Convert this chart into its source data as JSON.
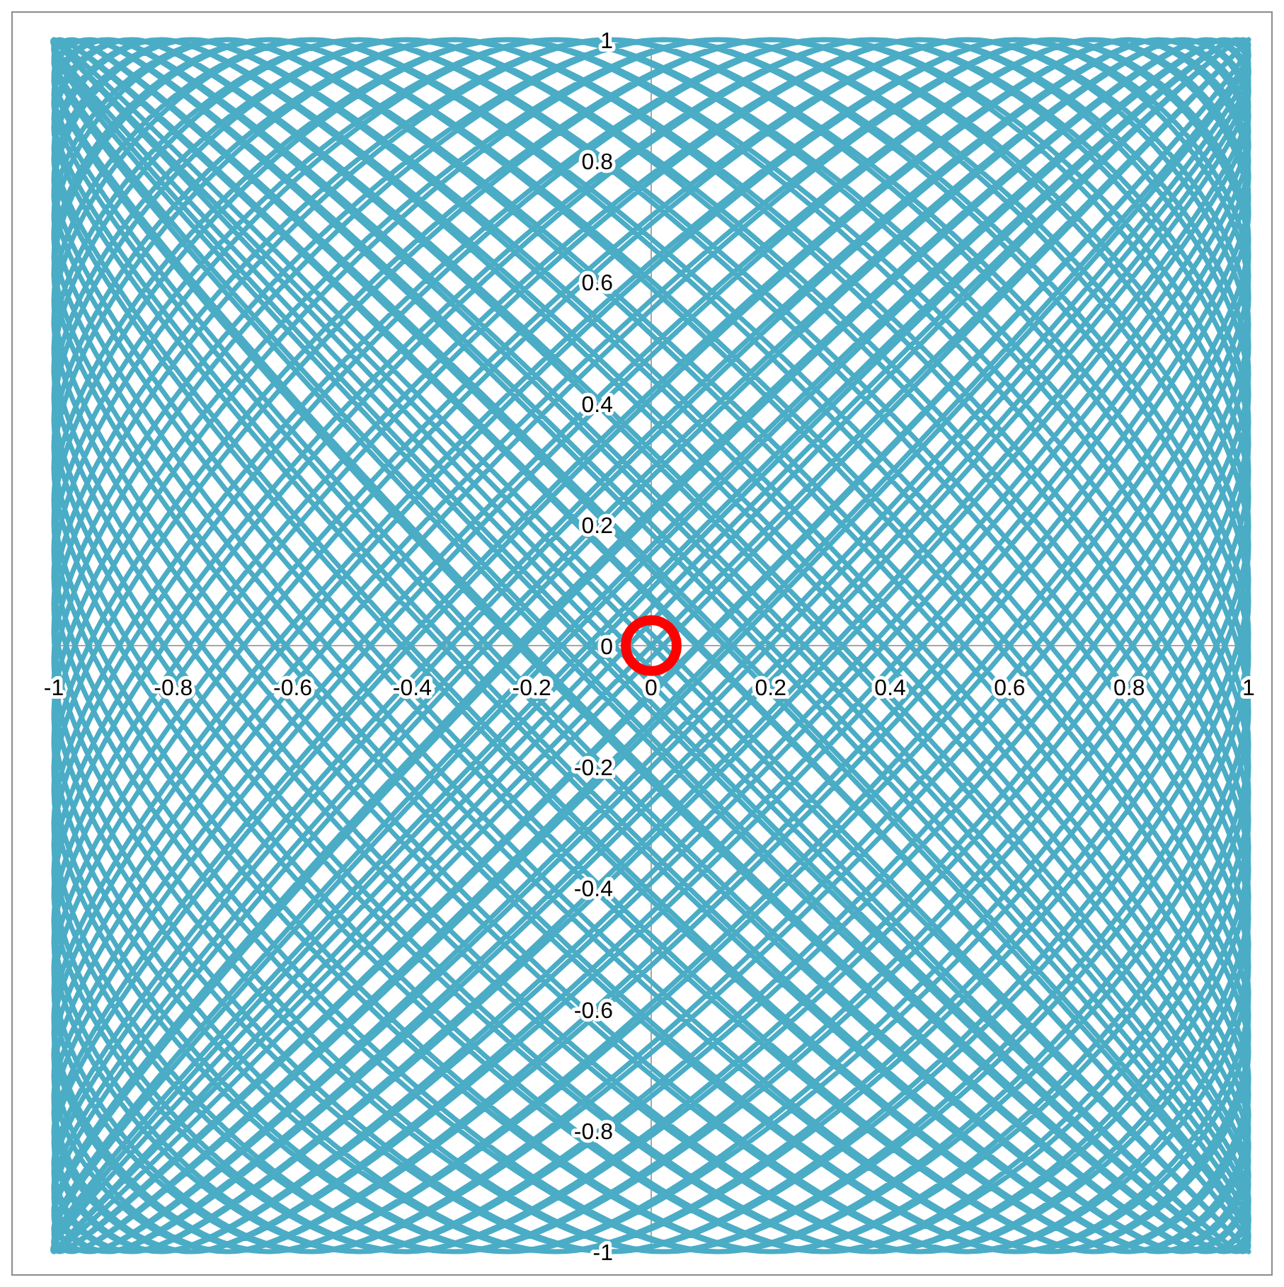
{
  "chart_data": {
    "type": "line",
    "xlim": [
      -1,
      1
    ],
    "ylim": [
      -1,
      1
    ],
    "xticks": [
      -1,
      -0.8,
      -0.6,
      -0.4,
      -0.2,
      0,
      0.2,
      0.4,
      0.6,
      0.8,
      1
    ],
    "yticks": [
      -1,
      -0.8,
      -0.6,
      -0.4,
      -0.2,
      0,
      0.2,
      0.4,
      0.6,
      0.8,
      1
    ],
    "series": [
      {
        "color": "#4bacc6",
        "x": [
          1,
          1,
          -1,
          -1,
          0.99,
          1,
          -0.99,
          -1,
          0.98,
          1,
          -0.97,
          -1,
          0.96,
          1,
          -0.94,
          -1,
          0.93,
          1,
          -0.91,
          -1,
          0.89,
          1,
          -0.87,
          -1,
          0.85,
          1,
          -0.82,
          -1,
          0.8,
          1,
          -0.77,
          -1,
          0.74,
          1,
          -0.71,
          -1,
          0.67,
          1,
          -0.64,
          -1,
          0.61,
          1,
          -0.57,
          -1,
          0.53,
          1,
          -0.49,
          -1,
          0.45,
          1,
          -0.41,
          -1,
          0.37,
          1,
          -0.33,
          -1,
          0.29,
          1,
          -0.24,
          -1,
          0.2,
          1,
          -0.16,
          -1,
          0.11,
          1,
          -0.07,
          -1,
          0.02,
          1,
          0.02,
          -1,
          -0.07,
          1,
          0.11,
          -1,
          -0.16,
          1,
          0.2,
          -1,
          -0.24,
          1,
          0.29,
          -1,
          -0.33,
          1,
          0.37,
          -1,
          -0.41,
          1,
          0.45,
          -1,
          -0.49,
          1,
          0.53,
          -1,
          -0.57,
          1,
          0.61,
          -1,
          -0.64,
          1,
          0.67,
          -1,
          -0.71,
          1,
          0.74,
          -1,
          -0.77,
          1,
          0.8,
          -1,
          -0.82,
          1,
          0.85,
          -1,
          -0.87,
          1,
          0.89,
          -1,
          -0.91,
          1,
          0.93,
          -1,
          -0.94,
          1,
          0.96,
          -1,
          -0.97,
          1,
          0.98,
          -1,
          -0.99,
          1,
          0.99,
          -1,
          -1,
          1,
          1,
          -1,
          -1,
          1,
          1,
          -1,
          -1,
          0.99,
          1,
          -0.99,
          -1,
          0.98,
          1,
          -0.97,
          -1,
          0.96,
          1,
          -0.94,
          -1,
          0.93,
          1,
          -0.91,
          -1,
          0.89,
          1,
          -0.87,
          -1,
          0.85,
          1,
          -0.82,
          -1,
          0.8,
          1,
          -0.77,
          -1,
          0.74,
          1,
          -0.71,
          -1,
          0.67,
          1,
          -0.64,
          -1,
          0.61,
          1,
          -0.57,
          -1,
          0.53,
          1,
          -0.49,
          -1,
          0.45,
          1,
          -0.41,
          -1,
          0.37,
          1,
          -0.33,
          -1,
          0.29,
          1,
          -0.24,
          -1,
          0.2,
          1,
          -0.16,
          -1,
          0.11,
          1,
          -0.07,
          -1,
          0.02,
          1,
          0.02,
          -1,
          -0.07,
          1,
          0.11,
          -1,
          -0.16,
          1,
          0.2,
          -1,
          -0.24,
          1,
          0.29,
          -1,
          -0.33,
          1,
          0.37,
          -1,
          -0.41,
          1,
          0.45,
          -1,
          -0.49,
          1,
          0.53,
          -1,
          -0.57,
          1,
          0.61,
          -1,
          -0.64,
          1,
          0.67,
          -1,
          -0.71,
          1,
          0.74,
          -1,
          -0.77,
          1,
          0.8,
          -1,
          -0.82,
          1,
          0.85,
          -1,
          -0.87,
          1,
          0.89,
          -1,
          -0.91,
          1,
          0.93,
          -1,
          -0.94,
          1,
          0.96,
          -1,
          -0.97,
          1,
          0.98,
          -1,
          -0.99,
          1,
          0.99,
          -1,
          -1,
          1,
          1,
          -1,
          -1
        ],
        "values": [
          1,
          1,
          -1,
          -1,
          1,
          0.99,
          -1,
          -0.99,
          1,
          0.98,
          -1,
          -0.97,
          1,
          0.96,
          -1,
          -0.94,
          1,
          0.93,
          -1,
          -0.91,
          1,
          0.89,
          -1,
          -0.87,
          1,
          0.85,
          -1,
          -0.82,
          1,
          0.8,
          -1,
          -0.77,
          1,
          0.74,
          -1,
          -0.71,
          1,
          0.67,
          -1,
          -0.64,
          1,
          0.61,
          -1,
          -0.57,
          1,
          0.53,
          -1,
          -0.49,
          1,
          0.45,
          -1,
          -0.41,
          1,
          0.37,
          -1,
          -0.33,
          1,
          0.29,
          -1,
          -0.24,
          1,
          0.2,
          -1,
          -0.16,
          1,
          0.11,
          -1,
          -0.07,
          1,
          0.02,
          -1,
          0.02,
          1,
          -0.07,
          -1,
          0.11,
          1,
          -0.16,
          -1,
          0.2,
          1,
          -0.24,
          -1,
          0.29,
          1,
          -0.33,
          -1,
          0.37,
          1,
          -0.41,
          -1,
          0.45,
          1,
          -0.49,
          -1,
          0.53,
          1,
          -0.57,
          -1,
          0.61,
          1,
          -0.64,
          -1,
          0.67,
          1,
          -0.71,
          -1,
          0.74,
          1,
          -0.77,
          -1,
          0.8,
          1,
          -0.82,
          -1,
          0.85,
          1,
          -0.87,
          -1,
          0.89,
          1,
          -0.91,
          -1,
          0.93,
          1,
          -0.94,
          -1,
          0.96,
          1,
          -0.97,
          -1,
          0.98,
          1,
          -0.99,
          -1,
          0.99,
          1,
          -1,
          -1,
          1,
          1,
          -1,
          -1,
          1,
          1,
          -1,
          -0.99,
          1,
          0.99,
          -1,
          -0.98,
          1,
          0.97,
          -1,
          -0.96,
          1,
          0.94,
          -1,
          -0.93,
          1,
          0.91,
          -1,
          -0.89,
          1,
          0.87,
          -1,
          -0.85,
          1,
          0.82,
          -1,
          -0.8,
          1,
          0.77,
          -1,
          -0.74,
          1,
          0.71,
          -1,
          -0.67,
          1,
          0.64,
          -1,
          -0.61,
          1,
          0.57,
          -1,
          -0.53,
          1,
          0.49,
          -1,
          -0.45,
          1,
          0.41,
          -1,
          -0.37,
          1,
          0.33,
          -1,
          -0.29,
          1,
          0.24,
          -1,
          -0.2,
          1,
          0.16,
          -1,
          -0.11,
          1,
          0.07,
          -1,
          -0.02,
          1,
          -0.02,
          -1,
          0.07,
          1,
          -0.11,
          -1,
          0.16,
          1,
          -0.2,
          -1,
          0.24,
          1,
          -0.29,
          -1,
          0.33,
          1,
          -0.37,
          -1,
          0.41,
          1,
          -0.45,
          -1,
          0.49,
          1,
          -0.53,
          -1,
          0.57,
          1,
          -0.61,
          -1,
          0.64,
          1,
          -0.67,
          -1,
          0.71,
          1,
          -0.74,
          -1,
          0.77,
          1,
          -0.8,
          -1,
          0.82,
          1,
          -0.85,
          -1,
          0.87,
          1,
          -0.89,
          -1,
          0.91,
          1,
          -0.93,
          -1,
          0.94,
          1,
          -0.96,
          -1,
          0.97,
          1,
          -0.98,
          -1,
          0.99,
          1,
          -0.99,
          -1,
          1,
          1,
          -1,
          -1
        ]
      },
      {
        "type": "scatter",
        "color": "#ff0000",
        "marker": "circle",
        "x": [
          0
        ],
        "values": [
          0
        ]
      }
    ]
  }
}
